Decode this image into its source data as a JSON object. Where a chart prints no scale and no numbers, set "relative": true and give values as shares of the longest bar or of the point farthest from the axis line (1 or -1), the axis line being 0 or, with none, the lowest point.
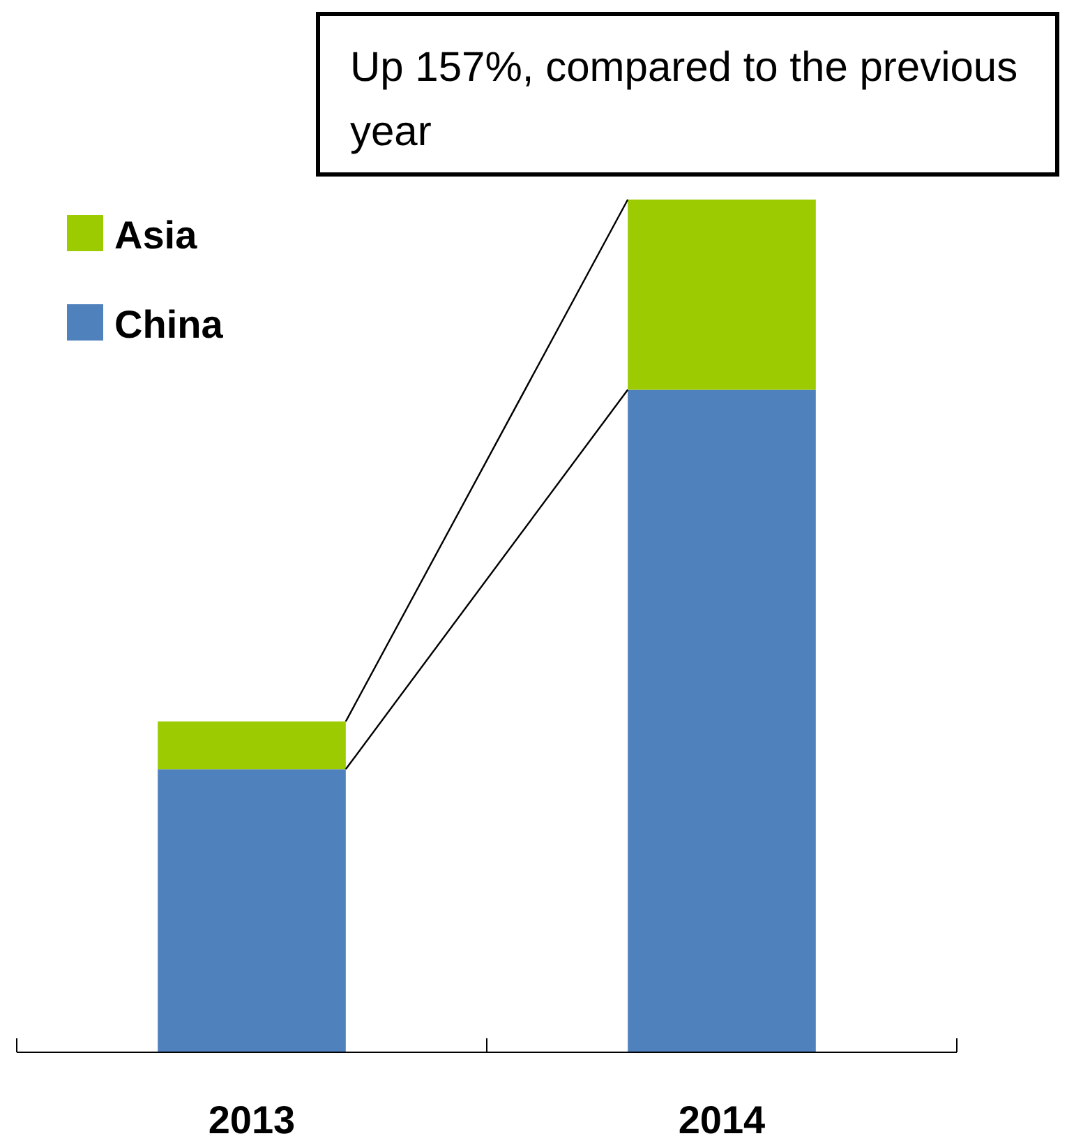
{
  "chart_data": {
    "type": "bar",
    "stacked": true,
    "relative": true,
    "categories": [
      "2013",
      "2014"
    ],
    "series": [
      {
        "name": "China",
        "color": "#4f81bd",
        "values": [
          0.332,
          0.777
        ]
      },
      {
        "name": "Asia",
        "color": "#9bcb00",
        "values": [
          0.056,
          0.223
        ]
      }
    ],
    "annotations": [
      "Up 157%, compared to the previous year"
    ],
    "legend": "top left",
    "grid": false
  }
}
